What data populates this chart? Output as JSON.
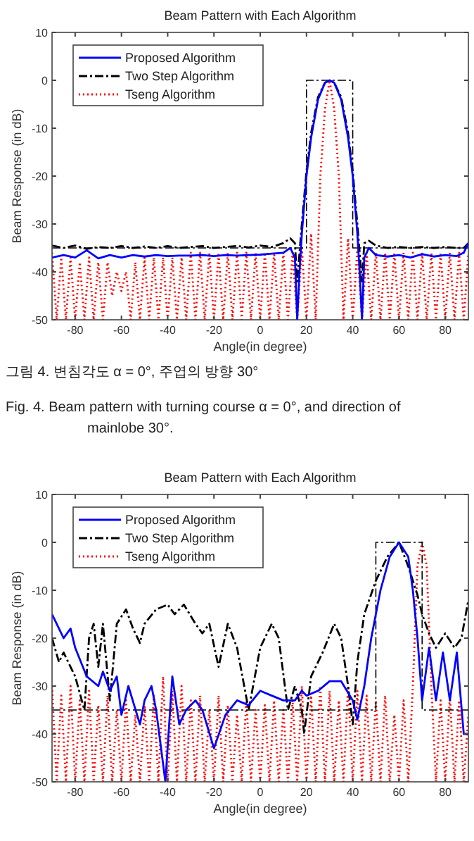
{
  "chart_data": [
    {
      "type": "line",
      "title": "Beam Pattern with Each Algorithm",
      "xlabel": "Angle(in degree)",
      "ylabel": "Beam Response (in dB)",
      "xlim": [
        -90,
        90
      ],
      "ylim": [
        -50,
        10
      ],
      "xticks": [
        -80,
        -60,
        -40,
        -20,
        0,
        20,
        40,
        60,
        80
      ],
      "yticks": [
        -50,
        -40,
        -30,
        -20,
        -10,
        0,
        10
      ],
      "grid": false,
      "legend": "top left",
      "annotations": [
        "그림 4.  변침각도 α = 0°, 주엽의 방향 30°",
        "Fig.  4.  Beam pattern with turning course α = 0°, and direction of mainlobe 30°."
      ],
      "series": [
        {
          "name": "Tseng Algorithm",
          "color": "#ff0000",
          "line_style": "dotted",
          "x": [
            -90,
            -88,
            -86,
            -84,
            -82,
            -80,
            -78,
            -76,
            -74,
            -72,
            -70,
            -68,
            -66,
            -64,
            -62,
            -60,
            -58,
            -56,
            -54,
            -52,
            -50,
            -48,
            -46,
            -44,
            -42,
            -40,
            -38,
            -36,
            -34,
            -32,
            -30,
            -28,
            -26,
            -24,
            -22,
            -20,
            -18,
            -16,
            -14,
            -12,
            -10,
            -8,
            -6,
            -4,
            -2,
            0,
            2,
            4,
            6,
            8,
            10,
            12,
            14,
            16,
            18,
            20,
            22,
            24,
            26,
            28,
            30,
            32,
            34,
            36,
            38,
            40,
            42,
            44,
            46,
            48,
            50,
            52,
            54,
            56,
            58,
            60,
            62,
            64,
            66,
            68,
            70,
            72,
            74,
            76,
            78,
            80,
            82,
            84,
            86,
            88,
            90
          ],
          "values": [
            -36,
            -50,
            -37,
            -50,
            -37,
            -50,
            -38,
            -50,
            -37,
            -50,
            -38,
            -50,
            -38,
            -45,
            -40,
            -44,
            -40,
            -50,
            -38,
            -50,
            -37,
            -50,
            -37,
            -50,
            -37,
            -50,
            -37,
            -50,
            -37,
            -50,
            -36,
            -50,
            -36,
            -50,
            -36,
            -50,
            -36,
            -50,
            -36,
            -50,
            -36,
            -50,
            -36,
            -50,
            -36,
            -50,
            -36,
            -50,
            -36,
            -50,
            -36,
            -50,
            -36,
            -50,
            -35,
            -50,
            -32,
            -50,
            -20,
            -6,
            0,
            -6,
            -20,
            -50,
            -33,
            -50,
            -35,
            -50,
            -36,
            -50,
            -36,
            -50,
            -36,
            -50,
            -36,
            -50,
            -36,
            -50,
            -36,
            -50,
            -36,
            -50,
            -36,
            -50,
            -36,
            -50,
            -36,
            -50,
            -36,
            -50,
            -36
          ]
        },
        {
          "color": "#000000",
          "line_style": "dashdot",
          "x": [
            -90,
            20,
            20,
            40,
            40,
            90
          ],
          "values": [
            -35,
            -35,
            0,
            0,
            -35,
            -35
          ]
        },
        {
          "name": "Two Step Algorithm",
          "color": "#000000",
          "line_style": "dashdot",
          "x": [
            -90,
            -85,
            -80,
            -75,
            -70,
            -65,
            -60,
            -55,
            -50,
            -45,
            -40,
            -35,
            -30,
            -25,
            -20,
            -15,
            -10,
            -5,
            0,
            5,
            10,
            13,
            15,
            16,
            17,
            18,
            20,
            22,
            25,
            28,
            30,
            32,
            35,
            38,
            40,
            42,
            43,
            44,
            45,
            47,
            50,
            55,
            60,
            65,
            70,
            75,
            80,
            85,
            88,
            90
          ],
          "values": [
            -34.5,
            -35,
            -34.5,
            -35.2,
            -34.8,
            -35,
            -34.6,
            -35,
            -34.7,
            -35,
            -34.6,
            -35,
            -34.8,
            -34.6,
            -35,
            -34.8,
            -34.6,
            -34.9,
            -34.5,
            -34.8,
            -34,
            -33,
            -34,
            -42,
            -36,
            -30,
            -19,
            -11,
            -3.5,
            -0.5,
            0,
            -0.5,
            -3.5,
            -11,
            -19,
            -30,
            -36,
            -42,
            -34,
            -33.5,
            -34.5,
            -35,
            -34.8,
            -35,
            -34.8,
            -35,
            -34.8,
            -35,
            -35,
            -34
          ]
        },
        {
          "name": "Proposed Algorithm",
          "color": "#0000ff",
          "line_style": "solid",
          "x": [
            -90,
            -85,
            -80,
            -75,
            -70,
            -65,
            -60,
            -55,
            -50,
            -45,
            -40,
            -35,
            -30,
            -25,
            -20,
            -15,
            -10,
            -5,
            0,
            5,
            10,
            13,
            15,
            16,
            17,
            18,
            20,
            22,
            25,
            28,
            30,
            32,
            35,
            38,
            40,
            42,
            43,
            44,
            45,
            47,
            50,
            55,
            60,
            65,
            70,
            75,
            80,
            85,
            88,
            90
          ],
          "values": [
            -37,
            -36.5,
            -37,
            -35.5,
            -37.2,
            -36.5,
            -37,
            -36.5,
            -36.8,
            -36.5,
            -36.7,
            -36.6,
            -36.6,
            -36.5,
            -36.7,
            -36.5,
            -36.6,
            -36.5,
            -36.4,
            -36.2,
            -36,
            -35,
            -37,
            -50,
            -40,
            -32,
            -20,
            -12,
            -4,
            -0.5,
            0,
            -0.5,
            -4,
            -12,
            -20,
            -32,
            -40,
            -50,
            -37,
            -35,
            -36.5,
            -36.8,
            -36.5,
            -37,
            -36.3,
            -36.8,
            -36.5,
            -36.7,
            -36,
            -34
          ]
        }
      ]
    },
    {
      "type": "line",
      "title": "Beam Pattern with Each Algorithm",
      "xlabel": "Angle(in degree)",
      "ylabel": "Beam Response (in dB)",
      "xlim": [
        -90,
        90
      ],
      "ylim": [
        -50,
        10
      ],
      "xticks": [
        -80,
        -60,
        -40,
        -20,
        0,
        20,
        40,
        60,
        80
      ],
      "yticks": [
        -50,
        -40,
        -30,
        -20,
        -10,
        0,
        10
      ],
      "grid": false,
      "legend": "top left",
      "series": [
        {
          "name": "Tseng Algorithm",
          "color": "#ff0000",
          "line_style": "dotted",
          "x": [
            -90,
            -88,
            -86,
            -84,
            -82,
            -80,
            -78,
            -76,
            -74,
            -72,
            -70,
            -68,
            -66,
            -64,
            -62,
            -60,
            -58,
            -56,
            -54,
            -52,
            -50,
            -48,
            -46,
            -44,
            -42,
            -40,
            -38,
            -36,
            -34,
            -32,
            -30,
            -28,
            -26,
            -24,
            -22,
            -20,
            -18,
            -16,
            -14,
            -12,
            -10,
            -8,
            -6,
            -4,
            -2,
            0,
            2,
            4,
            6,
            8,
            10,
            12,
            14,
            16,
            18,
            20,
            22,
            24,
            26,
            28,
            30,
            32,
            34,
            36,
            38,
            40,
            42,
            44,
            46,
            48,
            50,
            52,
            54,
            56,
            58,
            60,
            62,
            64,
            66,
            68,
            70,
            72,
            74,
            76,
            78,
            80,
            82,
            84,
            86,
            88,
            90
          ],
          "values": [
            -30,
            -50,
            -32,
            -50,
            -30,
            -50,
            -33,
            -50,
            -31,
            -50,
            -34,
            -50,
            -32,
            -50,
            -35,
            -50,
            -33,
            -50,
            -36,
            -50,
            -34,
            -50,
            -32,
            -50,
            -28,
            -50,
            -31,
            -50,
            -30,
            -50,
            -33,
            -50,
            -32,
            -50,
            -35,
            -50,
            -32,
            -50,
            -34,
            -50,
            -36,
            -50,
            -33,
            -50,
            -35,
            -50,
            -34,
            -50,
            -33,
            -50,
            -35,
            -50,
            -33,
            -50,
            -30,
            -50,
            -32,
            -50,
            -30,
            -50,
            -31,
            -50,
            -33,
            -50,
            -30,
            -50,
            -31,
            -50,
            -32,
            -50,
            -33,
            -50,
            -32,
            -50,
            -36,
            -50,
            -33,
            -50,
            -30,
            -5,
            0,
            -5,
            -30,
            -50,
            -33,
            -50,
            -32,
            -50,
            -33,
            -50,
            -36
          ]
        },
        {
          "color": "#000000",
          "line_style": "dashdot",
          "x": [
            -90,
            50,
            50,
            70,
            70,
            90
          ],
          "values": [
            -35,
            -35,
            0,
            0,
            -35,
            -35
          ]
        },
        {
          "name": "Two Step Algorithm",
          "color": "#000000",
          "line_style": "dashdot",
          "x": [
            -90,
            -87,
            -85,
            -80,
            -76,
            -74,
            -72,
            -70,
            -68,
            -65,
            -62,
            -58,
            -55,
            -52,
            -50,
            -45,
            -40,
            -37,
            -33,
            -28,
            -25,
            -22,
            -18,
            -14,
            -10,
            -5,
            0,
            5,
            8,
            12,
            15,
            18,
            19,
            22,
            27,
            32,
            35,
            38,
            40,
            42,
            45,
            50,
            55,
            60,
            64,
            68,
            70,
            73,
            76,
            80,
            84,
            87,
            90
          ],
          "values": [
            -20,
            -25,
            -23,
            -28,
            -35,
            -20,
            -17,
            -26,
            -17,
            -33,
            -17,
            -14,
            -18,
            -21,
            -17,
            -14,
            -13,
            -15,
            -13,
            -17,
            -19,
            -17,
            -26,
            -17,
            -22,
            -35,
            -22,
            -17,
            -20,
            -35,
            -30,
            -35,
            -40,
            -28,
            -23,
            -17,
            -20,
            -30,
            -38,
            -25,
            -15,
            -8,
            -3,
            0,
            -5,
            -11,
            -15,
            -19,
            -22,
            -19,
            -22,
            -20,
            -12
          ]
        },
        {
          "name": "Proposed Algorithm",
          "color": "#0000ff",
          "line_style": "solid",
          "x": [
            -90,
            -87,
            -85,
            -82,
            -80,
            -75,
            -70,
            -68,
            -65,
            -62,
            -60,
            -57,
            -52,
            -50,
            -47,
            -45,
            -41,
            -38,
            -35,
            -32,
            -28,
            -25,
            -20,
            -15,
            -10,
            -5,
            0,
            5,
            10,
            15,
            18,
            20,
            25,
            30,
            35,
            40,
            42,
            45,
            48,
            52,
            56,
            60,
            64,
            66,
            68,
            70,
            73,
            76,
            79,
            82,
            85,
            88,
            90
          ],
          "values": [
            -15,
            -18,
            -20,
            -18,
            -22,
            -28,
            -30,
            -27,
            -31,
            -28,
            -36,
            -30,
            -38,
            -33,
            -30,
            -35,
            -50,
            -28,
            -38,
            -35,
            -33,
            -35,
            -43,
            -36,
            -33,
            -34,
            -31,
            -32,
            -33,
            -33,
            -31,
            -32,
            -31,
            -29,
            -29,
            -33,
            -37,
            -30,
            -20,
            -10,
            -3,
            0,
            -3,
            -10,
            -20,
            -33,
            -22,
            -33,
            -23,
            -33,
            -23,
            -40,
            -40
          ]
        }
      ]
    }
  ]
}
